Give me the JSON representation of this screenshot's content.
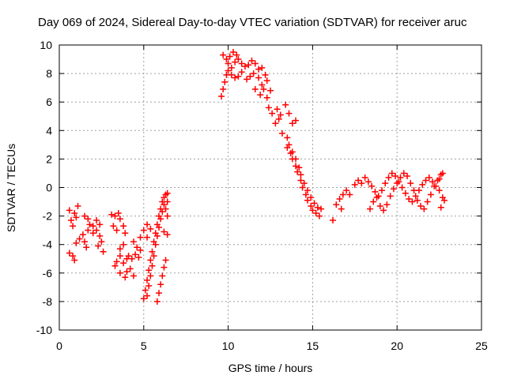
{
  "chart_data": {
    "type": "scatter",
    "title": "Day 069 of 2024, Sidereal Day-to-day VTEC variation (SDTVAR) for receiver aruc",
    "xlabel": "GPS time / hours",
    "ylabel": "SDTVAR / TECUs",
    "xlim": [
      0,
      25
    ],
    "ylim": [
      -10,
      10
    ],
    "xticks": [
      "0",
      "5",
      "10",
      "15",
      "20",
      "25"
    ],
    "yticks": [
      "10",
      "8",
      "6",
      "4",
      "2",
      "0",
      "-2",
      "-4",
      "-6",
      "-8",
      "-10"
    ],
    "grid": true,
    "marker": "+",
    "color": "#ff0000",
    "series": [
      {
        "name": "SDTVAR",
        "points": [
          [
            0.6,
            -1.6
          ],
          [
            0.7,
            -2.3
          ],
          [
            0.8,
            -2.7
          ],
          [
            0.9,
            -1.8
          ],
          [
            1.0,
            -2.1
          ],
          [
            1.1,
            -1.3
          ],
          [
            0.6,
            -4.6
          ],
          [
            0.8,
            -4.8
          ],
          [
            0.9,
            -5.1
          ],
          [
            1.0,
            -3.9
          ],
          [
            1.2,
            -3.6
          ],
          [
            1.4,
            -3.3
          ],
          [
            1.5,
            -3.8
          ],
          [
            1.6,
            -4.2
          ],
          [
            1.7,
            -3.0
          ],
          [
            1.5,
            -2.0
          ],
          [
            1.7,
            -2.2
          ],
          [
            1.8,
            -2.6
          ],
          [
            2.0,
            -2.7
          ],
          [
            2.2,
            -2.3
          ],
          [
            2.4,
            -2.6
          ],
          [
            2.0,
            -3.2
          ],
          [
            2.2,
            -3.0
          ],
          [
            2.4,
            -3.4
          ],
          [
            2.5,
            -3.8
          ],
          [
            2.3,
            -4.1
          ],
          [
            2.6,
            -4.5
          ],
          [
            3.1,
            -1.9
          ],
          [
            3.3,
            -2.0
          ],
          [
            3.5,
            -1.8
          ],
          [
            3.6,
            -2.2
          ],
          [
            3.2,
            -2.7
          ],
          [
            3.4,
            -3.0
          ],
          [
            3.8,
            -2.7
          ],
          [
            3.9,
            -3.2
          ],
          [
            3.3,
            -5.5
          ],
          [
            3.4,
            -5.2
          ],
          [
            3.6,
            -4.8
          ],
          [
            3.8,
            -5.3
          ],
          [
            4.0,
            -5.0
          ],
          [
            4.2,
            -5.7
          ],
          [
            4.4,
            -6.2
          ],
          [
            4.1,
            -4.8
          ],
          [
            4.3,
            -5.0
          ],
          [
            4.0,
            -5.9
          ],
          [
            3.6,
            -6.0
          ],
          [
            3.9,
            -6.3
          ],
          [
            3.6,
            -4.3
          ],
          [
            3.8,
            -4.0
          ],
          [
            4.4,
            -3.8
          ],
          [
            4.6,
            -4.2
          ],
          [
            4.8,
            -4.4
          ],
          [
            4.5,
            -4.7
          ],
          [
            4.7,
            -4.9
          ],
          [
            4.8,
            -3.5
          ],
          [
            5.0,
            -3.0
          ],
          [
            5.2,
            -2.6
          ],
          [
            5.4,
            -2.9
          ],
          [
            5.2,
            -3.5
          ],
          [
            5.0,
            -7.8
          ],
          [
            5.1,
            -7.2
          ],
          [
            5.2,
            -6.5
          ],
          [
            5.3,
            -5.8
          ],
          [
            5.4,
            -5.1
          ],
          [
            5.5,
            -4.5
          ],
          [
            5.6,
            -3.8
          ],
          [
            5.7,
            -3.2
          ],
          [
            5.8,
            -2.6
          ],
          [
            5.9,
            -2.0
          ],
          [
            6.0,
            -1.5
          ],
          [
            6.1,
            -1.0
          ],
          [
            6.2,
            -0.7
          ],
          [
            6.3,
            -0.5
          ],
          [
            5.2,
            -7.6
          ],
          [
            5.3,
            -6.9
          ],
          [
            5.4,
            -6.2
          ],
          [
            5.5,
            -5.5
          ],
          [
            5.6,
            -4.8
          ],
          [
            5.7,
            -4.0
          ],
          [
            5.8,
            -3.4
          ],
          [
            5.9,
            -2.8
          ],
          [
            6.0,
            -2.2
          ],
          [
            6.1,
            -1.7
          ],
          [
            6.2,
            -1.2
          ],
          [
            5.8,
            -8.0
          ],
          [
            5.9,
            -7.4
          ],
          [
            6.0,
            -6.8
          ],
          [
            6.1,
            -6.2
          ],
          [
            6.2,
            -5.6
          ],
          [
            6.3,
            -5.1
          ],
          [
            6.4,
            -0.4
          ],
          [
            6.4,
            -1.0
          ],
          [
            6.3,
            -1.5
          ],
          [
            6.4,
            -2.0
          ],
          [
            6.2,
            -3.1
          ],
          [
            6.4,
            -3.3
          ],
          [
            9.6,
            6.4
          ],
          [
            9.7,
            6.9
          ],
          [
            9.8,
            7.4
          ],
          [
            9.9,
            7.9
          ],
          [
            10.0,
            8.2
          ],
          [
            10.2,
            8.4
          ],
          [
            10.4,
            8.8
          ],
          [
            10.6,
            9.0
          ],
          [
            10.8,
            8.7
          ],
          [
            11.0,
            8.5
          ],
          [
            11.2,
            8.6
          ],
          [
            11.4,
            8.9
          ],
          [
            11.6,
            8.7
          ],
          [
            11.8,
            8.3
          ],
          [
            12.0,
            8.4
          ],
          [
            9.7,
            9.3
          ],
          [
            9.9,
            9.0
          ],
          [
            10.0,
            8.7
          ],
          [
            10.1,
            9.2
          ],
          [
            10.3,
            9.5
          ],
          [
            10.5,
            9.3
          ],
          [
            10.2,
            7.9
          ],
          [
            10.4,
            7.7
          ],
          [
            10.6,
            7.8
          ],
          [
            10.8,
            8.1
          ],
          [
            11.1,
            7.6
          ],
          [
            11.3,
            7.8
          ],
          [
            11.5,
            8.0
          ],
          [
            11.8,
            7.7
          ],
          [
            12.0,
            7.2
          ],
          [
            12.2,
            7.9
          ],
          [
            12.3,
            7.5
          ],
          [
            11.6,
            6.9
          ],
          [
            11.9,
            6.5
          ],
          [
            12.1,
            6.9
          ],
          [
            12.3,
            6.3
          ],
          [
            12.5,
            6.8
          ],
          [
            12.4,
            5.6
          ],
          [
            12.6,
            5.2
          ],
          [
            12.8,
            4.5
          ],
          [
            13.0,
            4.8
          ],
          [
            13.1,
            5.1
          ],
          [
            12.9,
            5.5
          ],
          [
            13.2,
            3.8
          ],
          [
            13.5,
            3.5
          ],
          [
            13.4,
            5.8
          ],
          [
            13.6,
            5.2
          ],
          [
            13.8,
            4.5
          ],
          [
            14.0,
            4.7
          ],
          [
            13.5,
            2.8
          ],
          [
            13.7,
            2.4
          ],
          [
            13.8,
            2.0
          ],
          [
            14.0,
            1.5
          ],
          [
            14.1,
            1.1
          ],
          [
            14.3,
            0.5
          ],
          [
            14.4,
            0.0
          ],
          [
            14.6,
            -0.5
          ],
          [
            14.7,
            -0.9
          ],
          [
            14.9,
            -1.3
          ],
          [
            15.0,
            -1.6
          ],
          [
            15.2,
            -1.8
          ],
          [
            15.4,
            -2.0
          ],
          [
            13.6,
            3.0
          ],
          [
            13.8,
            2.5
          ],
          [
            14.0,
            2.0
          ],
          [
            14.2,
            1.4
          ],
          [
            14.3,
            0.9
          ],
          [
            14.5,
            0.3
          ],
          [
            14.7,
            -0.2
          ],
          [
            14.9,
            -0.7
          ],
          [
            15.1,
            -1.1
          ],
          [
            15.3,
            -1.4
          ],
          [
            15.5,
            -1.5
          ],
          [
            16.2,
            -2.3
          ],
          [
            16.4,
            -1.2
          ],
          [
            16.6,
            -0.8
          ],
          [
            16.8,
            -0.5
          ],
          [
            16.7,
            -1.5
          ],
          [
            17.0,
            -0.2
          ],
          [
            17.2,
            -0.5
          ],
          [
            17.5,
            0.2
          ],
          [
            17.7,
            0.5
          ],
          [
            17.9,
            0.3
          ],
          [
            18.1,
            0.7
          ],
          [
            18.3,
            0.4
          ],
          [
            18.5,
            0.1
          ],
          [
            18.7,
            -0.3
          ],
          [
            18.9,
            -0.6
          ],
          [
            19.1,
            -0.2
          ],
          [
            19.3,
            0.3
          ],
          [
            19.5,
            0.7
          ],
          [
            19.7,
            1.0
          ],
          [
            19.9,
            0.8
          ],
          [
            20.1,
            0.4
          ],
          [
            20.3,
            0.0
          ],
          [
            20.5,
            -0.4
          ],
          [
            20.7,
            -0.8
          ],
          [
            20.9,
            -1.0
          ],
          [
            21.1,
            -0.6
          ],
          [
            21.3,
            -0.2
          ],
          [
            21.5,
            0.2
          ],
          [
            21.7,
            0.5
          ],
          [
            21.9,
            0.7
          ],
          [
            22.1,
            0.4
          ],
          [
            22.3,
            0.1
          ],
          [
            22.5,
            -0.2
          ],
          [
            18.4,
            -1.5
          ],
          [
            18.6,
            -1.0
          ],
          [
            18.8,
            -0.7
          ],
          [
            19.0,
            -1.3
          ],
          [
            19.2,
            -1.6
          ],
          [
            19.4,
            -1.2
          ],
          [
            19.6,
            -0.6
          ],
          [
            19.8,
            -0.1
          ],
          [
            20.0,
            0.3
          ],
          [
            20.2,
            0.7
          ],
          [
            20.4,
            1.0
          ],
          [
            20.6,
            0.8
          ],
          [
            20.8,
            0.3
          ],
          [
            21.0,
            -0.2
          ],
          [
            21.2,
            -0.9
          ],
          [
            21.4,
            -1.3
          ],
          [
            21.6,
            -1.5
          ],
          [
            21.8,
            -1.0
          ],
          [
            22.0,
            -0.5
          ],
          [
            22.2,
            0.1
          ],
          [
            22.4,
            0.5
          ],
          [
            22.6,
            0.9
          ],
          [
            22.7,
            -0.7
          ],
          [
            22.8,
            -0.9
          ],
          [
            22.6,
            -1.4
          ],
          [
            22.7,
            1.0
          ],
          [
            22.5,
            0.6
          ]
        ]
      }
    ]
  }
}
